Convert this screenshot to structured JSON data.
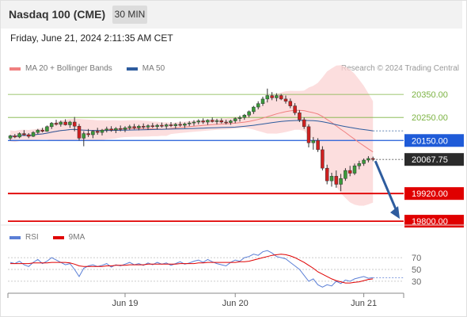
{
  "header": {
    "instrument": "Nasdaq 100 (CME)",
    "timeframe": "30 MIN"
  },
  "datetime": "Friday, June 21, 2024 2:11:35 AM CET",
  "legend": {
    "items": [
      {
        "label": "MA 20 + Bollinger Bands",
        "color": "#f08080"
      },
      {
        "label": "MA 50",
        "color": "#2e5c9e"
      }
    ],
    "attribution": "Research © 2024 Trading Central"
  },
  "rsi_legend": {
    "items": [
      {
        "label": "RSI",
        "color": "#5b7fd6"
      },
      {
        "label": "9MA",
        "color": "#e00000"
      }
    ]
  },
  "chart_data": [
    {
      "type": "candlestick",
      "ylim": [
        19790,
        20395
      ],
      "x_labels": [
        "Jun 19",
        "Jun 20",
        "Jun 21"
      ],
      "levels": [
        {
          "value": 20350.0,
          "label": "20350.00",
          "kind": "resistance",
          "color": "#7cb342"
        },
        {
          "value": 20250.0,
          "label": "20250.00",
          "kind": "resistance",
          "color": "#7cb342"
        },
        {
          "value": 20150.0,
          "label": "20150.00",
          "kind": "pivot",
          "color": "#1f5bd8"
        },
        {
          "value": 19920.0,
          "label": "19920.00",
          "kind": "support",
          "color": "#e00000"
        },
        {
          "value": 19800.0,
          "label": "19800.00",
          "kind": "support",
          "color": "#e00000"
        }
      ],
      "last_price": {
        "value": 20067.75,
        "label": "20067.75"
      },
      "ohlc": [
        [
          20160,
          20175,
          20150,
          20170
        ],
        [
          20170,
          20178,
          20160,
          20165
        ],
        [
          20165,
          20185,
          20160,
          20180
        ],
        [
          20180,
          20195,
          20170,
          20175
        ],
        [
          20175,
          20182,
          20160,
          20168
        ],
        [
          20168,
          20190,
          20165,
          20185
        ],
        [
          20185,
          20200,
          20178,
          20195
        ],
        [
          20195,
          20205,
          20185,
          20190
        ],
        [
          20190,
          20215,
          20188,
          20210
        ],
        [
          20210,
          20230,
          20200,
          20225
        ],
        [
          20225,
          20240,
          20215,
          20220
        ],
        [
          20220,
          20236,
          20210,
          20230
        ],
        [
          20230,
          20242,
          20215,
          20218
        ],
        [
          20218,
          20235,
          20205,
          20230
        ],
        [
          20230,
          20252,
          20190,
          20212
        ],
        [
          20212,
          20222,
          20150,
          20160
        ],
        [
          20160,
          20190,
          20125,
          20180
        ],
        [
          20180,
          20200,
          20165,
          20175
        ],
        [
          20175,
          20195,
          20160,
          20190
        ],
        [
          20190,
          20205,
          20175,
          20185
        ],
        [
          20185,
          20200,
          20172,
          20195
        ],
        [
          20195,
          20210,
          20185,
          20200
        ],
        [
          20200,
          20212,
          20188,
          20195
        ],
        [
          20195,
          20208,
          20182,
          20202
        ],
        [
          20202,
          20215,
          20190,
          20198
        ],
        [
          20198,
          20212,
          20186,
          20205
        ],
        [
          20205,
          20218,
          20195,
          20210
        ],
        [
          20210,
          20222,
          20198,
          20205
        ],
        [
          20205,
          20218,
          20194,
          20212
        ],
        [
          20212,
          20224,
          20200,
          20208
        ],
        [
          20208,
          20220,
          20196,
          20214
        ],
        [
          20214,
          20226,
          20204,
          20210
        ],
        [
          20210,
          20222,
          20198,
          20216
        ],
        [
          20216,
          20228,
          20206,
          20212
        ],
        [
          20212,
          20224,
          20200,
          20218
        ],
        [
          20218,
          20230,
          20208,
          20214
        ],
        [
          20214,
          20226,
          20202,
          20220
        ],
        [
          20220,
          20232,
          20210,
          20216
        ],
        [
          20216,
          20228,
          20204,
          20222
        ],
        [
          20222,
          20234,
          20212,
          20226
        ],
        [
          20226,
          20238,
          20214,
          20230
        ],
        [
          20230,
          20242,
          20220,
          20235
        ],
        [
          20235,
          20246,
          20222,
          20230
        ],
        [
          20230,
          20242,
          20218,
          20238
        ],
        [
          20238,
          20250,
          20228,
          20232
        ],
        [
          20232,
          20244,
          20220,
          20236
        ],
        [
          20236,
          20246,
          20224,
          20230
        ],
        [
          20230,
          20240,
          20220,
          20228
        ],
        [
          20228,
          20240,
          20218,
          20235
        ],
        [
          20235,
          20250,
          20225,
          20245
        ],
        [
          20245,
          20258,
          20232,
          20250
        ],
        [
          20250,
          20265,
          20240,
          20260
        ],
        [
          20260,
          20280,
          20250,
          20275
        ],
        [
          20275,
          20300,
          20265,
          20295
        ],
        [
          20295,
          20320,
          20285,
          20310
        ],
        [
          20310,
          20340,
          20300,
          20330
        ],
        [
          20330,
          20375,
          20315,
          20345
        ],
        [
          20345,
          20360,
          20325,
          20335
        ],
        [
          20335,
          20355,
          20320,
          20345
        ],
        [
          20345,
          20352,
          20325,
          20330
        ],
        [
          20330,
          20345,
          20310,
          20320
        ],
        [
          20320,
          20332,
          20290,
          20300
        ],
        [
          20300,
          20312,
          20260,
          20270
        ],
        [
          20270,
          20282,
          20230,
          20240
        ],
        [
          20240,
          20250,
          20200,
          20210
        ],
        [
          20210,
          20220,
          20120,
          20140
        ],
        [
          20140,
          20165,
          20110,
          20150
        ],
        [
          20150,
          20160,
          20100,
          20110
        ],
        [
          20110,
          20125,
          20020,
          20030
        ],
        [
          20030,
          20045,
          19960,
          19975
        ],
        [
          19975,
          20010,
          19950,
          19995
        ],
        [
          19995,
          20020,
          19945,
          19960
        ],
        [
          19960,
          20005,
          19930,
          19985
        ],
        [
          19985,
          20030,
          19975,
          20020
        ],
        [
          20020,
          20040,
          19995,
          20008
        ],
        [
          20008,
          20050,
          20000,
          20040
        ],
        [
          20040,
          20062,
          20025,
          20050
        ],
        [
          20050,
          20072,
          20040,
          20065
        ],
        [
          20065,
          20082,
          20055,
          20072
        ],
        [
          20072,
          20080,
          20060,
          20068
        ]
      ]
    },
    {
      "type": "line",
      "name": "RSI",
      "ylim": [
        15,
        85
      ],
      "y_ticks": [
        70,
        50,
        30
      ],
      "series": [
        {
          "name": "RSI",
          "values": [
            62,
            60,
            64,
            58,
            55,
            62,
            67,
            60,
            64,
            70,
            66,
            62,
            58,
            60,
            50,
            38,
            52,
            56,
            58,
            55,
            57,
            60,
            54,
            58,
            56,
            59,
            62,
            58,
            60,
            57,
            61,
            58,
            62,
            59,
            61,
            57,
            60,
            63,
            59,
            61,
            64,
            66,
            62,
            67,
            63,
            60,
            58,
            56,
            62,
            66,
            64,
            70,
            72,
            76,
            74,
            80,
            82,
            78,
            72,
            70,
            68,
            62,
            56,
            50,
            40,
            30,
            34,
            24,
            20,
            24,
            22,
            30,
            26,
            32,
            30,
            34,
            36,
            38,
            35,
            36
          ]
        },
        {
          "name": "9MA",
          "values": [
            60,
            60,
            60,
            60,
            60,
            61,
            61,
            61,
            61,
            62,
            62,
            62,
            62,
            61,
            59,
            56,
            55,
            55,
            55,
            55,
            55,
            56,
            56,
            57,
            57,
            57,
            58,
            58,
            58,
            58,
            59,
            59,
            59,
            59,
            59,
            59,
            59,
            60,
            60,
            60,
            60,
            61,
            61,
            62,
            62,
            62,
            62,
            62,
            62,
            62,
            63,
            63,
            64,
            66,
            68,
            70,
            72,
            74,
            75,
            76,
            75,
            73,
            70,
            66,
            62,
            57,
            52,
            46,
            42,
            38,
            34,
            31,
            29,
            27,
            27,
            28,
            29,
            31,
            33,
            34
          ]
        }
      ]
    }
  ]
}
